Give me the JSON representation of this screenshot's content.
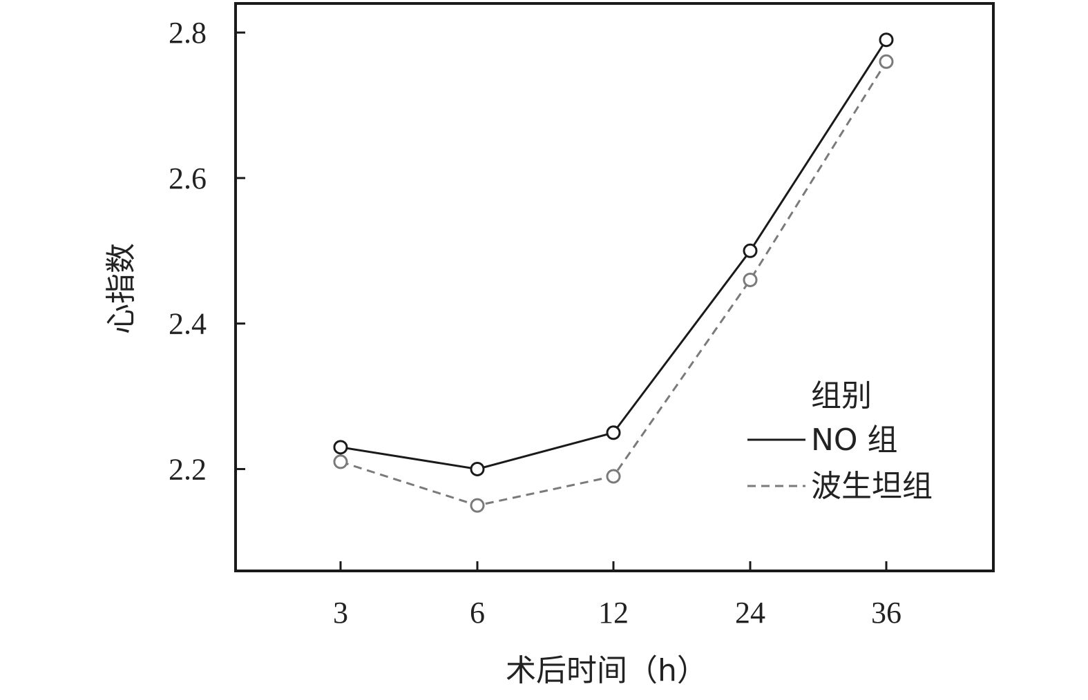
{
  "chart_data": {
    "type": "line",
    "xlabel": "术后时间（h）",
    "ylabel": "心指数",
    "categories": [
      "3",
      "6",
      "12",
      "24",
      "36"
    ],
    "yticks": [
      "2.2",
      "2.4",
      "2.6",
      "2.8"
    ],
    "ylim": [
      2.06,
      2.84
    ],
    "grid": false,
    "legend": {
      "title": "组别",
      "position": "right"
    },
    "series": [
      {
        "name": "NO 组",
        "values": [
          2.23,
          2.2,
          2.25,
          2.5,
          2.79
        ],
        "color": "#1a1a1a",
        "dash": "solid",
        "marker": "open-circle"
      },
      {
        "name": "波生坦组",
        "values": [
          2.21,
          2.15,
          2.19,
          2.46,
          2.76
        ],
        "color": "#7a7a7a",
        "dash": "dashed",
        "marker": "open-circle"
      }
    ]
  }
}
